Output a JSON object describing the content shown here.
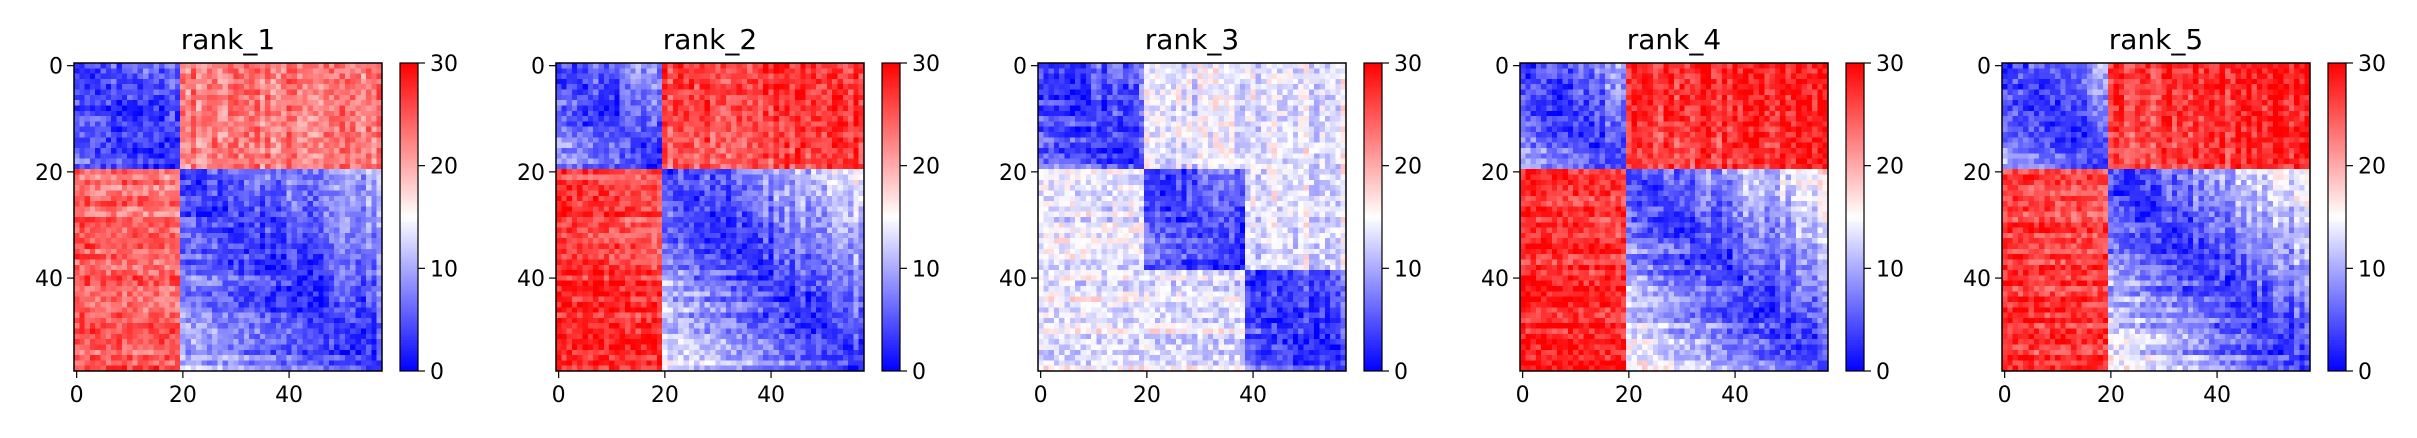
{
  "chart_data": {
    "type": "heatmap",
    "colormap": "bwr",
    "colormap_colors": {
      "low": "#0000ff",
      "mid": "#ffffff",
      "high": "#ff0000"
    },
    "matrix_size": 58,
    "value_range": [
      0,
      30
    ],
    "axis_ticks": [
      "0",
      "20",
      "40"
    ],
    "colorbar_ticks": [
      "0",
      "10",
      "20",
      "30"
    ],
    "panels": [
      {
        "title": "rank_1",
        "domains": [
          [
            0,
            19
          ],
          [
            20,
            57
          ]
        ],
        "intra_domain_values": {
          "near": 3,
          "far": 12
        },
        "inter_domain_value": 22,
        "top_right_corner_value": 23,
        "bottom_left_corner_value": 25
      },
      {
        "title": "rank_2",
        "domains": [
          [
            0,
            19
          ],
          [
            20,
            57
          ]
        ],
        "intra_domain_values": {
          "near": 3,
          "far": 16
        },
        "inter_domain_value": 24,
        "top_right_corner_value": 27,
        "bottom_left_corner_value": 28
      },
      {
        "title": "rank_3",
        "domains": [
          [
            0,
            19
          ],
          [
            20,
            38
          ],
          [
            39,
            57
          ]
        ],
        "intra_domain_values": {
          "near": 3,
          "far": 11
        },
        "inter_domain_value": 13,
        "top_right_corner_value": 14,
        "bottom_left_corner_value": 14
      },
      {
        "title": "rank_4",
        "domains": [
          [
            0,
            19
          ],
          [
            20,
            57
          ]
        ],
        "intra_domain_values": {
          "near": 3,
          "far": 17
        },
        "inter_domain_value": 25,
        "top_right_corner_value": 28,
        "bottom_left_corner_value": 28
      },
      {
        "title": "rank_5",
        "domains": [
          [
            0,
            19
          ],
          [
            20,
            57
          ]
        ],
        "intra_domain_values": {
          "near": 3,
          "far": 17
        },
        "inter_domain_value": 25,
        "top_right_corner_value": 28,
        "bottom_left_corner_value": 27
      }
    ]
  }
}
